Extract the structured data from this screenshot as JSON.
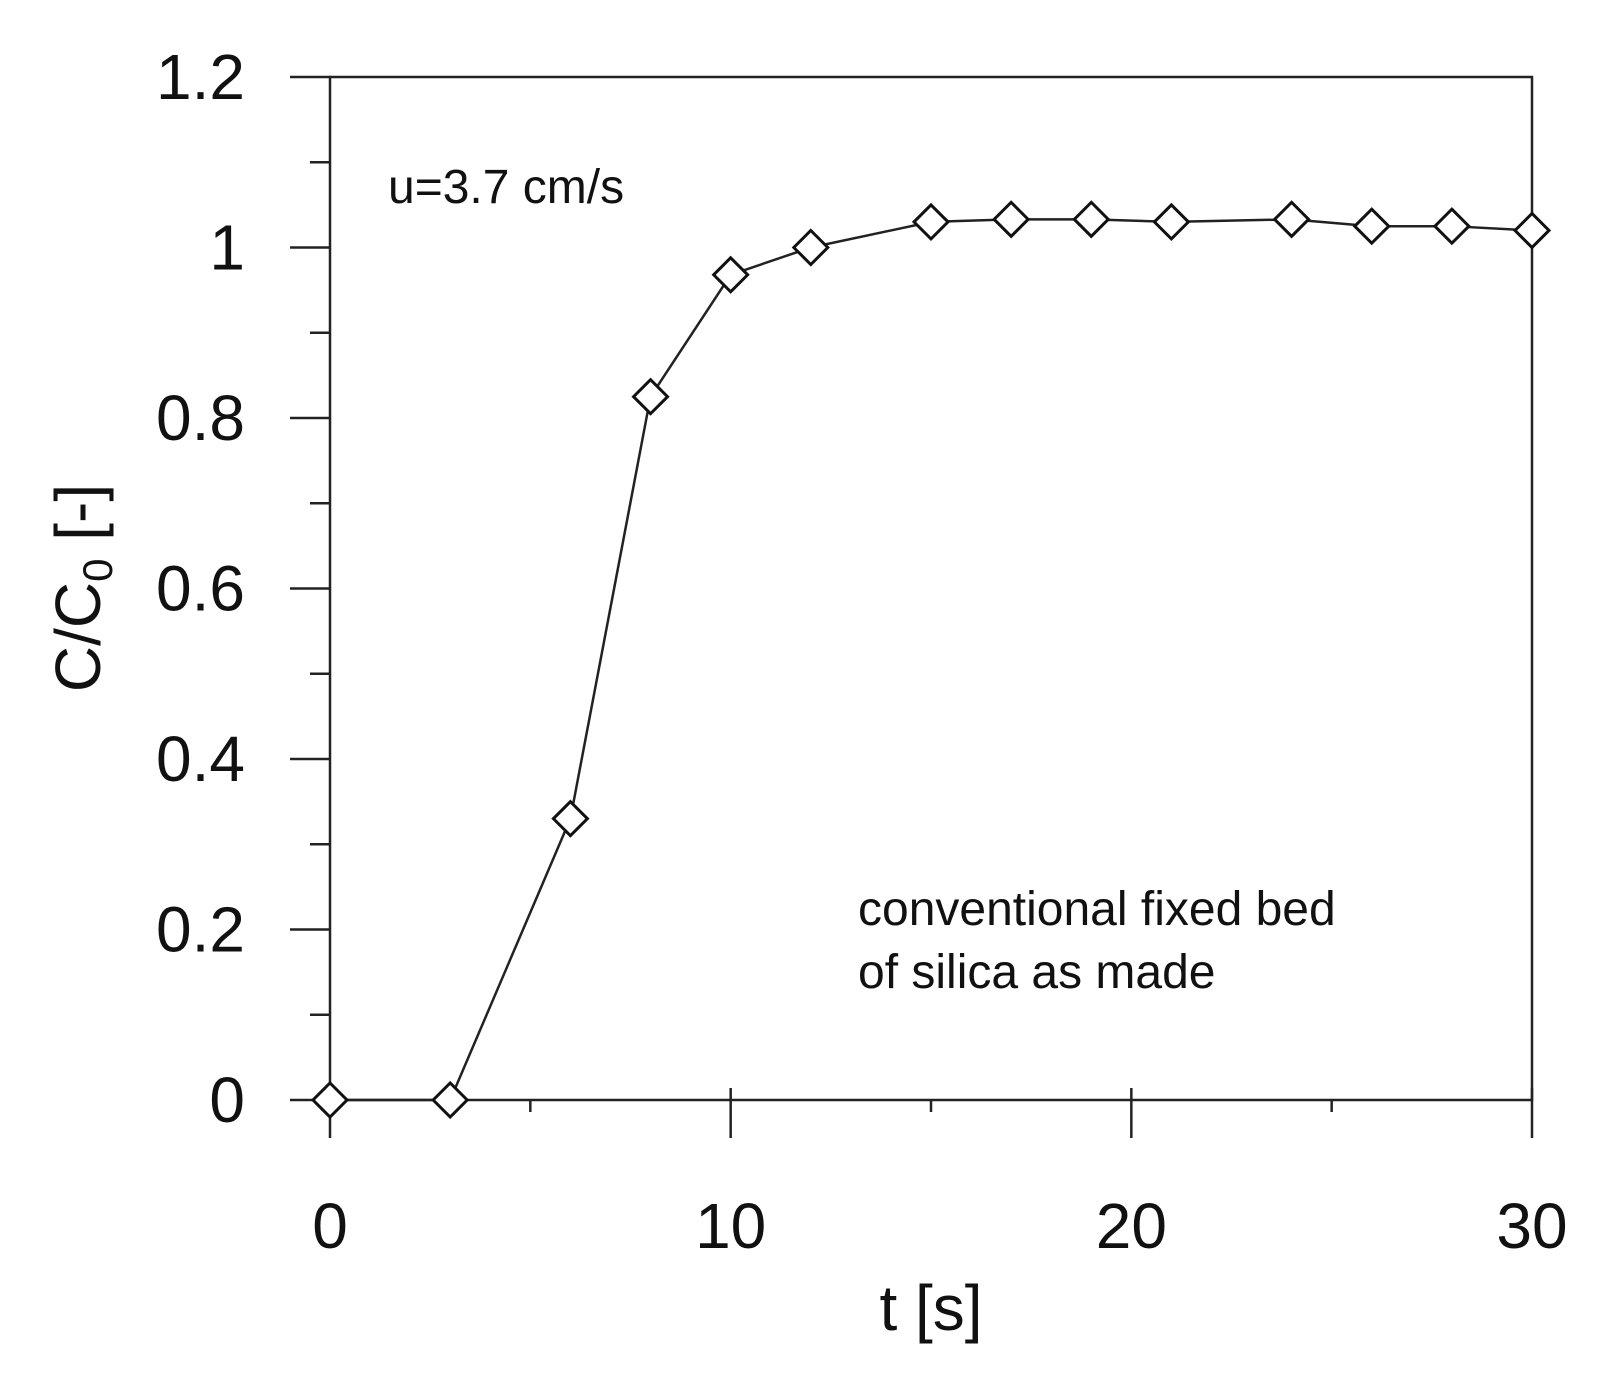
{
  "chart_data": {
    "type": "line",
    "title": "",
    "xlabel": "t [s]",
    "ylabel": {
      "main": "C/C",
      "subscript": "0",
      "suffix": " [-]"
    },
    "xlim": [
      0,
      30
    ],
    "ylim": [
      0,
      1.2
    ],
    "x_ticks": [
      0,
      10,
      20,
      30
    ],
    "x_tick_labels": [
      "0",
      "10",
      "20",
      "30"
    ],
    "x_minor_ticks": [
      5,
      15,
      25
    ],
    "y_ticks": [
      0,
      0.2,
      0.4,
      0.6,
      0.8,
      1.0,
      1.2
    ],
    "y_tick_labels": [
      "0",
      "0.2",
      "0.4",
      "0.6",
      "0.8",
      "1",
      "1.2"
    ],
    "y_minor_ticks": [
      0.1,
      0.3,
      0.5,
      0.7,
      0.9,
      1.1
    ],
    "grid": false,
    "legend": null,
    "marker": "open-diamond",
    "line_color": "#222222",
    "annotations": [
      {
        "text": "u=3.7 cm/s",
        "position": "top-left"
      },
      {
        "text": "conventional fixed bed",
        "position": "lower-right"
      },
      {
        "text": "of silica as made",
        "position": "lower-right"
      }
    ],
    "series": [
      {
        "x": [
          0,
          3,
          6,
          8,
          10,
          12,
          15,
          17,
          19,
          21,
          24,
          26,
          28,
          30
        ],
        "y": [
          0,
          0,
          0.33,
          0.825,
          0.968,
          1.0,
          1.03,
          1.033,
          1.033,
          1.03,
          1.033,
          1.025,
          1.025,
          1.02
        ]
      }
    ]
  }
}
